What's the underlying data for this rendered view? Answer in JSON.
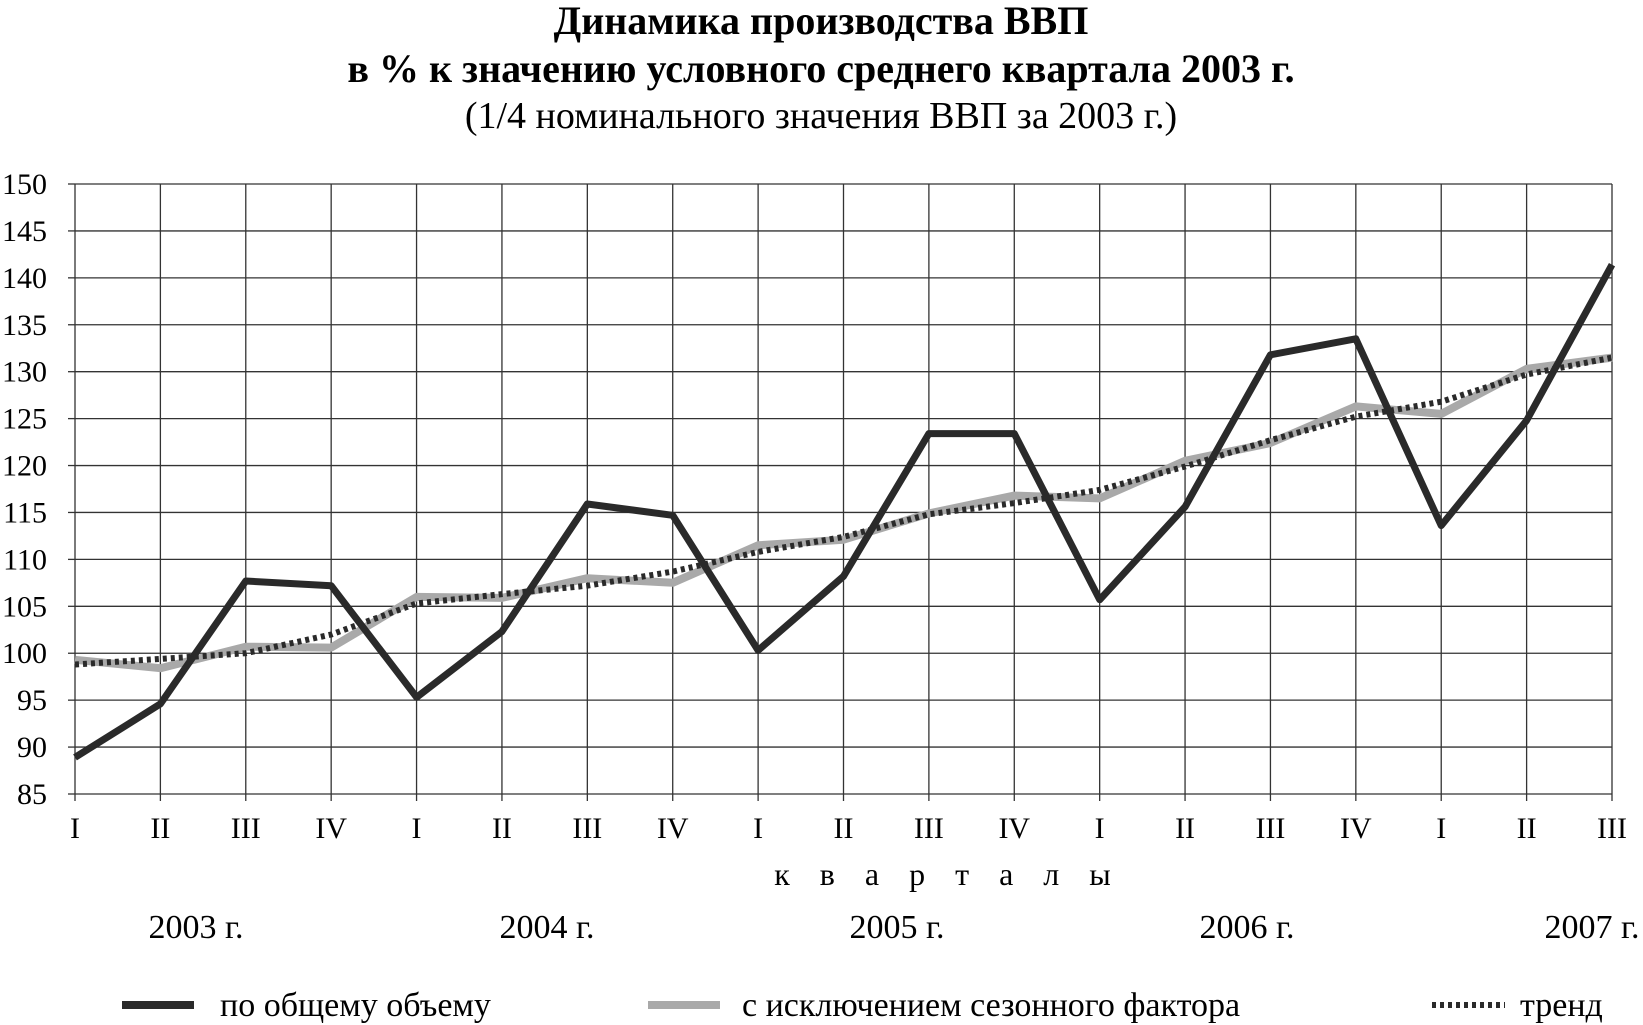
{
  "chart_data": {
    "type": "line",
    "title_line1": "Динамика производства ВВП",
    "title_line2": "в % к значению условного среднего квартала 2003 г.",
    "subtitle": "(1/4 номинального значения ВВП за 2003 г.)",
    "xlabel": "к в а р т а л ы",
    "ylim": [
      85,
      150
    ],
    "yticks": [
      85,
      90,
      95,
      100,
      105,
      110,
      115,
      120,
      125,
      130,
      135,
      140,
      145,
      150
    ],
    "categories": [
      "I",
      "II",
      "III",
      "IV",
      "I",
      "II",
      "III",
      "IV",
      "I",
      "II",
      "III",
      "IV",
      "I",
      "II",
      "III",
      "IV",
      "I",
      "II",
      "III"
    ],
    "years": [
      "2003 г.",
      "2004 г.",
      "2005 г.",
      "2006 г.",
      "2007 г."
    ],
    "grid": true,
    "legend_position": "bottom",
    "series": [
      {
        "name": "по общему объему",
        "color": "#2a2a2a",
        "style": "solid",
        "values": [
          88.9,
          94.6,
          107.7,
          107.2,
          95.3,
          102.3,
          115.9,
          114.7,
          100.3,
          108.2,
          123.4,
          123.4,
          105.7,
          115.6,
          131.8,
          133.5,
          113.6,
          124.8,
          141.4
        ]
      },
      {
        "name": "с исключением сезонного фактора",
        "color": "#a9a9a9",
        "style": "solid",
        "values": [
          99.3,
          98.4,
          100.7,
          100.6,
          106.0,
          105.9,
          108.0,
          107.5,
          111.5,
          112.1,
          114.9,
          116.8,
          116.5,
          120.5,
          122.4,
          126.3,
          125.5,
          130.3,
          131.5
        ]
      },
      {
        "name": "тренд",
        "color": "#2a2a2a",
        "style": "dotted",
        "values": [
          98.8,
          99.4,
          100.0,
          102.0,
          105.3,
          106.3,
          107.2,
          108.7,
          110.8,
          112.4,
          114.8,
          116.0,
          117.4,
          119.9,
          122.7,
          125.2,
          126.8,
          129.7,
          131.5
        ]
      }
    ]
  }
}
